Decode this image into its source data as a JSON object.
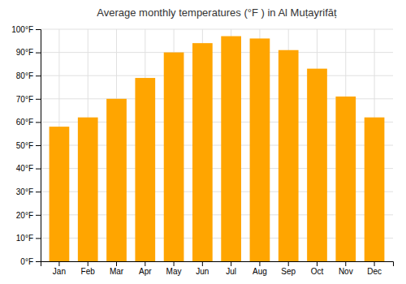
{
  "chart_data": {
    "type": "bar",
    "title": "Average monthly temperatures (°F ) in Al Muṭayrifāṭ",
    "categories": [
      "Jan",
      "Feb",
      "Mar",
      "Apr",
      "May",
      "Jun",
      "Jul",
      "Aug",
      "Sep",
      "Oct",
      "Nov",
      "Dec"
    ],
    "values": [
      58,
      62,
      70,
      79,
      90,
      94,
      97,
      96,
      91,
      83,
      71,
      62
    ],
    "color": "#FFA500",
    "ylim": [
      0,
      100
    ],
    "yticks": [
      {
        "value": 0,
        "label": "0°F"
      },
      {
        "value": 10,
        "label": "10°F"
      },
      {
        "value": 20,
        "label": "20°F"
      },
      {
        "value": 30,
        "label": "30°F"
      },
      {
        "value": 40,
        "label": "40°F"
      },
      {
        "value": 50,
        "label": "50°F"
      },
      {
        "value": 60,
        "label": "60°F"
      },
      {
        "value": 70,
        "label": "70°F"
      },
      {
        "value": 80,
        "label": "80°F"
      },
      {
        "value": 90,
        "label": "90°F"
      },
      {
        "value": 100,
        "label": "100°F"
      }
    ],
    "grid": true
  }
}
